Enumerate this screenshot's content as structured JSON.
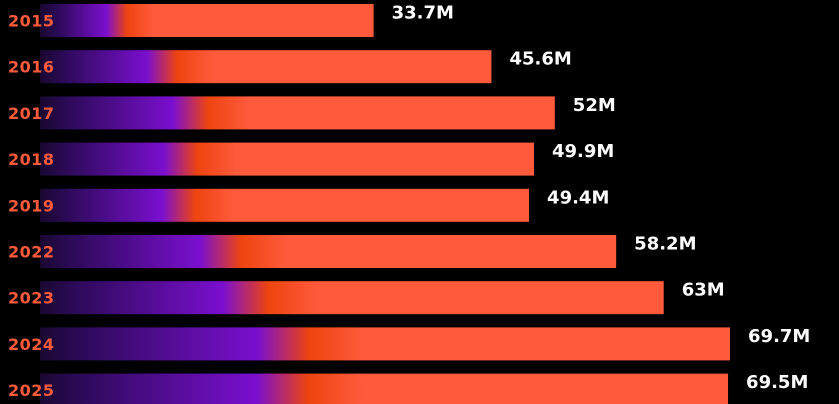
{
  "colors": {
    "background": "#000000",
    "bar_main": "#ff5a3c",
    "bar_orange": "#ee4410",
    "bar_purple": "#7a0fcf",
    "bar_dark": "#1a0830",
    "year_label": "#ff5a3c",
    "value_label": "#ffffff"
  },
  "chart_data": {
    "type": "bar",
    "orientation": "horizontal",
    "categories": [
      "2015",
      "2016",
      "2017",
      "2018",
      "2019",
      "2022",
      "2023",
      "2024",
      "2025"
    ],
    "values": [
      33.7,
      45.6,
      52,
      49.9,
      49.4,
      58.2,
      63,
      69.7,
      69.5
    ],
    "value_labels": [
      "33.7M",
      "45.6M",
      "52M",
      "49.9M",
      "49.4M",
      "58.2M",
      "63M",
      "69.7M",
      "69.5M"
    ],
    "title": "",
    "xlabel": "",
    "ylabel": "",
    "grid": false,
    "legend": "none"
  }
}
